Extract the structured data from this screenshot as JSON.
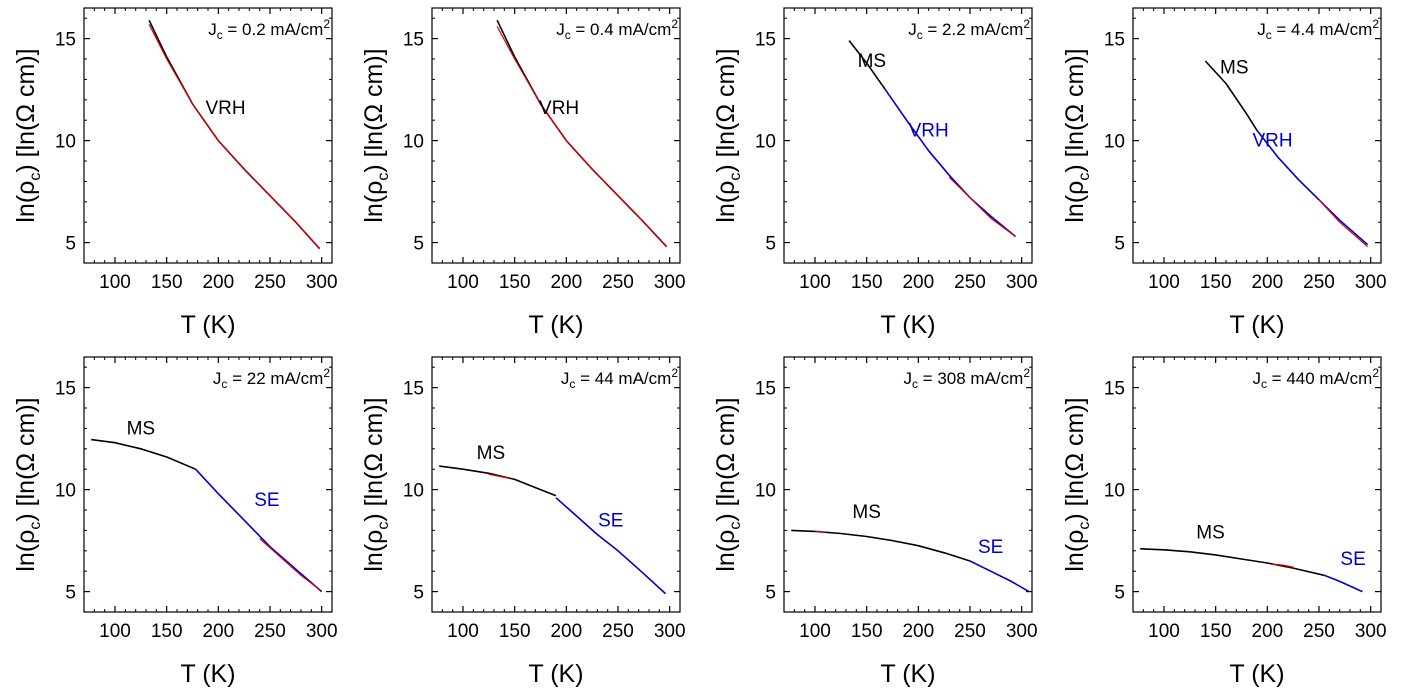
{
  "chart_data": [
    {
      "type": "line",
      "title": "J_c = 0.2 mA/cm^2",
      "title_parts": {
        "main": "J",
        "sub": "c",
        "value": " = 0.2 mA/cm",
        "sup": "2"
      },
      "xlabel": "T (K)",
      "ylabel_parts": {
        "pre": "ln(ρ",
        "sub": "c",
        "post": ") [ln(Ω cm)]"
      },
      "xlim": [
        70,
        310
      ],
      "ylim": [
        4,
        16.5
      ],
      "xticks": [
        100,
        150,
        200,
        250,
        300
      ],
      "yticks": [
        5,
        10,
        15
      ],
      "series": [
        {
          "color": "#000000",
          "x": [
            133,
            150,
            175,
            200,
            225,
            250,
            275,
            298
          ],
          "y": [
            15.9,
            14.1,
            11.8,
            10.0,
            8.6,
            7.3,
            6.0,
            4.7
          ]
        },
        {
          "color": "#dd0000",
          "x": [
            133,
            150,
            175,
            200,
            225,
            250,
            275,
            298
          ],
          "y": [
            15.7,
            14.0,
            11.8,
            10.0,
            8.6,
            7.3,
            6.0,
            4.7
          ]
        }
      ],
      "annotations": [
        {
          "text": "VRH",
          "x": 207,
          "y": 11.3,
          "color": "#000000"
        }
      ]
    },
    {
      "type": "line",
      "title": "J_c = 0.4 mA/cm^2",
      "title_parts": {
        "main": "J",
        "sub": "c",
        "value": " = 0.4 mA/cm",
        "sup": "2"
      },
      "xlabel": "T (K)",
      "ylabel_parts": {
        "pre": "ln(ρ",
        "sub": "c",
        "post": ") [ln(Ω cm)]"
      },
      "xlim": [
        70,
        310
      ],
      "ylim": [
        4,
        16.5
      ],
      "xticks": [
        100,
        150,
        200,
        250,
        300
      ],
      "yticks": [
        5,
        10,
        15
      ],
      "series": [
        {
          "color": "#000000",
          "x": [
            133,
            150,
            175,
            200,
            225,
            250,
            275,
            297
          ],
          "y": [
            15.9,
            14.1,
            11.8,
            10.0,
            8.6,
            7.3,
            6.0,
            4.8
          ]
        },
        {
          "color": "#dd0000",
          "x": [
            133,
            150,
            175,
            200,
            225,
            250,
            275,
            297
          ],
          "y": [
            15.6,
            14.0,
            11.8,
            10.0,
            8.6,
            7.3,
            6.0,
            4.8
          ]
        }
      ],
      "annotations": [
        {
          "text": "VRH",
          "x": 193,
          "y": 11.3,
          "color": "#000000"
        }
      ]
    },
    {
      "type": "line",
      "title": "J_c = 2.2 mA/cm^2",
      "title_parts": {
        "main": "J",
        "sub": "c",
        "value": " = 2.2 mA/cm",
        "sup": "2"
      },
      "xlabel": "T (K)",
      "ylabel_parts": {
        "pre": "ln(ρ",
        "sub": "c",
        "post": ") [ln(Ω cm)]"
      },
      "xlim": [
        70,
        310
      ],
      "ylim": [
        4,
        16.5
      ],
      "xticks": [
        100,
        150,
        200,
        250,
        300
      ],
      "yticks": [
        5,
        10,
        15
      ],
      "series": [
        {
          "color": "#000000",
          "x": [
            133,
            150,
            168
          ],
          "y": [
            14.9,
            13.8,
            12.5
          ]
        },
        {
          "color": "#0000cc",
          "x": [
            168,
            190,
            210,
            230,
            250,
            270,
            294
          ],
          "y": [
            12.5,
            10.9,
            9.5,
            8.3,
            7.2,
            6.3,
            5.3
          ]
        },
        {
          "color": "#dd0000",
          "x": [
            230,
            250,
            270,
            294
          ],
          "y": [
            8.2,
            7.2,
            6.2,
            5.3
          ]
        }
      ],
      "annotations": [
        {
          "text": "MS",
          "x": 155,
          "y": 13.6,
          "color": "#000000"
        },
        {
          "text": "VRH",
          "x": 210,
          "y": 10.2,
          "color": "#0000cc"
        }
      ]
    },
    {
      "type": "line",
      "title": "J_c = 4.4 mA/cm^2",
      "title_parts": {
        "main": "J",
        "sub": "c",
        "value": " = 4.4 mA/cm",
        "sup": "2"
      },
      "xlabel": "T (K)",
      "ylabel_parts": {
        "pre": "ln(ρ",
        "sub": "c",
        "post": ") [ln(Ω cm)]"
      },
      "xlim": [
        70,
        310
      ],
      "ylim": [
        4,
        16.5
      ],
      "xticks": [
        100,
        150,
        200,
        250,
        300
      ],
      "yticks": [
        5,
        10,
        15
      ],
      "series": [
        {
          "color": "#000000",
          "x": [
            140,
            160,
            180,
            190
          ],
          "y": [
            13.9,
            12.8,
            11.3,
            10.5
          ]
        },
        {
          "color": "#0000cc",
          "x": [
            190,
            210,
            230,
            250,
            270,
            297
          ],
          "y": [
            10.5,
            9.2,
            8.1,
            7.1,
            6.1,
            4.9
          ]
        },
        {
          "color": "#dd0000",
          "x": [
            250,
            270,
            297
          ],
          "y": [
            7.1,
            6.0,
            4.8
          ]
        }
      ],
      "annotations": [
        {
          "text": "MS",
          "x": 168,
          "y": 13.3,
          "color": "#000000"
        },
        {
          "text": "VRH",
          "x": 205,
          "y": 9.7,
          "color": "#0000cc"
        }
      ]
    },
    {
      "type": "line",
      "title": "J_c = 22 mA/cm^2",
      "title_parts": {
        "main": "J",
        "sub": "c",
        "value": " = 22 mA/cm",
        "sup": "2"
      },
      "xlabel": "T (K)",
      "ylabel_parts": {
        "pre": "ln(ρ",
        "sub": "c",
        "post": ") [ln(Ω cm)]"
      },
      "xlim": [
        70,
        310
      ],
      "ylim": [
        4,
        16.5
      ],
      "xticks": [
        100,
        150,
        200,
        250,
        300
      ],
      "yticks": [
        5,
        10,
        15
      ],
      "series": [
        {
          "color": "#000000",
          "x": [
            77,
            100,
            125,
            150,
            178
          ],
          "y": [
            12.45,
            12.3,
            12.0,
            11.6,
            11.0
          ]
        },
        {
          "color": "#0000cc",
          "x": [
            178,
            200,
            225,
            250,
            275,
            300
          ],
          "y": [
            11.0,
            9.8,
            8.5,
            7.2,
            6.1,
            5.0
          ]
        },
        {
          "color": "#dd0000",
          "x": [
            240,
            260,
            280,
            298
          ],
          "y": [
            7.6,
            6.7,
            5.8,
            5.1
          ]
        }
      ],
      "annotations": [
        {
          "text": "MS",
          "x": 125,
          "y": 12.7,
          "color": "#000000"
        },
        {
          "text": "SE",
          "x": 247,
          "y": 9.2,
          "color": "#0000cc"
        }
      ]
    },
    {
      "type": "line",
      "title": "J_c = 44 mA/cm^2",
      "title_parts": {
        "main": "J",
        "sub": "c",
        "value": " = 44 mA/cm",
        "sup": "2"
      },
      "xlabel": "T (K)",
      "ylabel_parts": {
        "pre": "ln(ρ",
        "sub": "c",
        "post": ") [ln(Ω cm)]"
      },
      "xlim": [
        70,
        310
      ],
      "ylim": [
        4,
        16.5
      ],
      "xticks": [
        100,
        150,
        200,
        250,
        300
      ],
      "yticks": [
        5,
        10,
        15
      ],
      "series": [
        {
          "color": "#000000",
          "x": [
            77,
            100,
            125,
            150,
            175,
            190
          ],
          "y": [
            11.15,
            11.0,
            10.8,
            10.5,
            10.0,
            9.7
          ]
        },
        {
          "color": "#0000cc",
          "x": [
            190,
            210,
            230,
            250,
            270,
            296
          ],
          "y": [
            9.6,
            8.7,
            7.8,
            7.0,
            6.1,
            4.9
          ]
        },
        {
          "color": "#dd0000",
          "x": [
            125,
            135,
            145
          ],
          "y": [
            10.75,
            10.65,
            10.55
          ]
        }
      ],
      "annotations": [
        {
          "text": "MS",
          "x": 127,
          "y": 11.5,
          "color": "#000000"
        },
        {
          "text": "SE",
          "x": 243,
          "y": 8.2,
          "color": "#0000cc"
        }
      ]
    },
    {
      "type": "line",
      "title": "J_c = 308 mA/cm^2",
      "title_parts": {
        "main": "J",
        "sub": "c",
        "value": " = 308 mA/cm",
        "sup": "2"
      },
      "xlabel": "T (K)",
      "ylabel_parts": {
        "pre": "ln(ρ",
        "sub": "c",
        "post": ") [ln(Ω cm)]"
      },
      "xlim": [
        70,
        310
      ],
      "ylim": [
        4,
        16.5
      ],
      "xticks": [
        100,
        150,
        200,
        250,
        300
      ],
      "yticks": [
        5,
        10,
        15
      ],
      "series": [
        {
          "color": "#000000",
          "x": [
            77,
            100,
            125,
            150,
            175,
            200,
            225,
            250
          ],
          "y": [
            8.0,
            7.95,
            7.85,
            7.7,
            7.5,
            7.25,
            6.9,
            6.5
          ]
        },
        {
          "color": "#0000cc",
          "x": [
            250,
            270,
            290,
            307
          ],
          "y": [
            6.5,
            6.0,
            5.5,
            5.0
          ]
        },
        {
          "color": "#dd0000",
          "x": [
            100,
            110
          ],
          "y": [
            7.95,
            7.9
          ]
        }
      ],
      "annotations": [
        {
          "text": "MS",
          "x": 150,
          "y": 8.6,
          "color": "#000000"
        },
        {
          "text": "SE",
          "x": 270,
          "y": 6.9,
          "color": "#0000cc"
        }
      ]
    },
    {
      "type": "line",
      "title": "J_c = 440 mA/cm^2",
      "title_parts": {
        "main": "J",
        "sub": "c",
        "value": " = 440 mA/cm",
        "sup": "2"
      },
      "xlabel": "T (K)",
      "ylabel_parts": {
        "pre": "ln(ρ",
        "sub": "c",
        "post": ") [ln(Ω cm)]"
      },
      "xlim": [
        70,
        310
      ],
      "ylim": [
        4,
        16.5
      ],
      "xticks": [
        100,
        150,
        200,
        250,
        300
      ],
      "yticks": [
        5,
        10,
        15
      ],
      "series": [
        {
          "color": "#000000",
          "x": [
            77,
            100,
            125,
            150,
            175,
            200,
            225,
            255
          ],
          "y": [
            7.1,
            7.05,
            6.95,
            6.8,
            6.6,
            6.4,
            6.15,
            5.8
          ]
        },
        {
          "color": "#0000cc",
          "x": [
            255,
            270,
            292
          ],
          "y": [
            5.8,
            5.5,
            5.0
          ]
        },
        {
          "color": "#dd0000",
          "x": [
            205,
            215,
            225
          ],
          "y": [
            6.35,
            6.3,
            6.2
          ]
        }
      ],
      "annotations": [
        {
          "text": "MS",
          "x": 145,
          "y": 7.6,
          "color": "#000000"
        },
        {
          "text": "SE",
          "x": 283,
          "y": 6.3,
          "color": "#0000cc"
        }
      ]
    }
  ]
}
